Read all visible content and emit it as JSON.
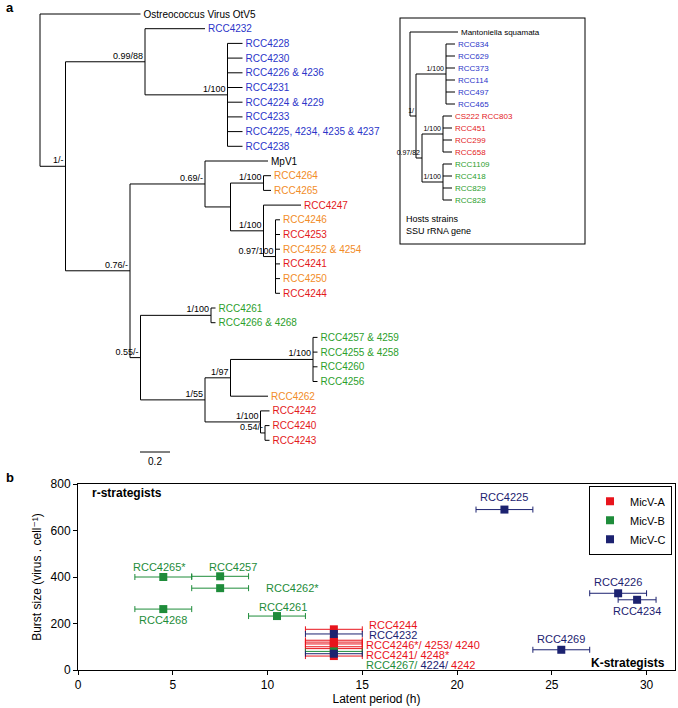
{
  "panel_labels": [
    "a",
    "b"
  ],
  "tree_panel": {
    "scale_bar": {
      "value": 0.2,
      "label": "0.2"
    },
    "tree": {
      "length": 0,
      "children": [
        {
          "name": "Ostreococcus Virus OtV5",
          "color": "#000000",
          "length": 0.67
        },
        {
          "support": "1/-",
          "length": 0.17,
          "children": [
            {
              "support": "0.99/88",
              "length": 0.53,
              "children": [
                {
                  "name": "RCC4232",
                  "color": "#2b35c9",
                  "length": 0.4
                },
                {
                  "support": "1/100",
                  "length": 0.55,
                  "children": [
                    {
                      "name": "RCC4228",
                      "color": "#2b35c9",
                      "length": 0.1
                    },
                    {
                      "name": "RCC4230",
                      "color": "#2b35c9",
                      "length": 0.1
                    },
                    {
                      "name": "RCC4226 & 4236",
                      "color": "#2b35c9",
                      "length": 0.1
                    },
                    {
                      "name": "RCC4231",
                      "color": "#2b35c9",
                      "length": 0.1
                    },
                    {
                      "name": "RCC4224 & 4229",
                      "color": "#2b35c9",
                      "length": 0.1
                    },
                    {
                      "name": "RCC4233",
                      "color": "#2b35c9",
                      "length": 0.1
                    },
                    {
                      "name": "RCC4225, 4234, 4235 & 4237",
                      "color": "#2b35c9",
                      "length": 0.1
                    },
                    {
                      "name": "RCC4238",
                      "color": "#2b35c9",
                      "length": 0.1
                    }
                  ]
                }
              ]
            },
            {
              "support": "0.76/-",
              "length": 0.43,
              "children": [
                {
                  "support": "0.69/-",
                  "length": 0.5,
                  "children": [
                    {
                      "name": "MpV1",
                      "color": "#000000",
                      "length": 0.42
                    },
                    {
                      "length": 0.17,
                      "children": [
                        {
                          "support": "1/100",
                          "length": 0.22,
                          "children": [
                            {
                              "name": "RCC4264",
                              "color": "#f28c28",
                              "length": 0.05
                            },
                            {
                              "name": "RCC4265",
                              "color": "#f28c28",
                              "length": 0.05
                            }
                          ]
                        },
                        {
                          "support": "1/100",
                          "length": 0.22,
                          "children": [
                            {
                              "name": "RCC4247",
                              "color": "#e31a1c",
                              "length": 0.25
                            },
                            {
                              "support": "0.97/100",
                              "length": 0.08,
                              "children": [
                                {
                                  "name": "RCC4246",
                                  "color": "#f28c28",
                                  "length": 0.03
                                },
                                {
                                  "name": "RCC4253",
                                  "color": "#e31a1c",
                                  "length": 0.03
                                },
                                {
                                  "name": "RCC4252 & 4254",
                                  "color": "#f28c28",
                                  "length": 0.03
                                },
                                {
                                  "name": "RCC4241",
                                  "color": "#e31a1c",
                                  "length": 0.03
                                },
                                {
                                  "name": "RCC4250",
                                  "color": "#f28c28",
                                  "length": 0.03
                                },
                                {
                                  "name": "RCC4244",
                                  "color": "#e31a1c",
                                  "length": 0.03
                                }
                              ]
                            }
                          ]
                        }
                      ]
                    }
                  ]
                },
                {
                  "support": "0.55/-",
                  "length": 0.07,
                  "children": [
                    {
                      "support": "1/100",
                      "length": 0.47,
                      "children": [
                        {
                          "name": "RCC4261",
                          "color": "#2ca02c",
                          "length": 0.03
                        },
                        {
                          "name": "RCC4266 & 4268",
                          "color": "#2ca02c",
                          "length": 0.03
                        }
                      ]
                    },
                    {
                      "support": "1/55",
                      "length": 0.43,
                      "children": [
                        {
                          "support": "1/97",
                          "length": 0.17,
                          "children": [
                            {
                              "support": "1/100",
                              "length": 0.55,
                              "children": [
                                {
                                  "name": "RCC4257 & 4259",
                                  "color": "#2ca02c",
                                  "length": 0.03
                                },
                                {
                                  "name": "RCC4255 & 4258",
                                  "color": "#2ca02c",
                                  "length": 0.03
                                },
                                {
                                  "name": "RCC4260",
                                  "color": "#2ca02c",
                                  "length": 0.03
                                },
                                {
                                  "name": "RCC4256",
                                  "color": "#2ca02c",
                                  "length": 0.03
                                }
                              ]
                            },
                            {
                              "name": "RCC4262",
                              "color": "#f28c28",
                              "length": 0.25
                            }
                          ]
                        },
                        {
                          "support": "1/100",
                          "length": 0.37,
                          "children": [
                            {
                              "name": "RCC4242",
                              "color": "#e31a1c",
                              "length": 0.06
                            },
                            {
                              "support": "0.54/-",
                              "length": 0.03,
                              "children": [
                                {
                                  "name": "RCC4240",
                                  "color": "#e31a1c",
                                  "length": 0.03
                                },
                                {
                                  "name": "RCC4243",
                                  "color": "#e31a1c",
                                  "length": 0.03
                                }
                              ]
                            }
                          ]
                        }
                      ]
                    }
                  ]
                }
              ]
            }
          ]
        }
      ]
    },
    "inset": {
      "caption": [
        "Hosts strains",
        "SSU rRNA gene"
      ],
      "tree": {
        "length": 0,
        "children": [
          {
            "name": "Mantoniella squamata",
            "color": "#000000",
            "length": 0.8
          },
          {
            "support": "1/",
            "length": 0.1,
            "children": [
              {
                "support": "1/100",
                "length": 0.5,
                "children": [
                  {
                    "name": "RCC834",
                    "color": "#2b35c9",
                    "length": 0.15
                  },
                  {
                    "name": "RCC629",
                    "color": "#2b35c9",
                    "length": 0.15
                  },
                  {
                    "name": "RCC373",
                    "color": "#2b35c9",
                    "length": 0.15
                  },
                  {
                    "name": "RCC114",
                    "color": "#2b35c9",
                    "length": 0.15
                  },
                  {
                    "name": "RCC497",
                    "color": "#2b35c9",
                    "length": 0.15
                  },
                  {
                    "name": "RCC465",
                    "color": "#2b35c9",
                    "length": 0.15
                  }
                ]
              },
              {
                "support": "0.97/82",
                "length": 0.1,
                "children": [
                  {
                    "support": "1/100",
                    "length": 0.35,
                    "children": [
                      {
                        "name": "CS222 RCC803",
                        "color": "#e31a1c",
                        "length": 0.15
                      },
                      {
                        "name": "RCC451",
                        "color": "#e31a1c",
                        "length": 0.15
                      },
                      {
                        "name": "RCC299",
                        "color": "#e31a1c",
                        "length": 0.15
                      },
                      {
                        "name": "RCC658",
                        "color": "#e31a1c",
                        "length": 0.15
                      }
                    ]
                  },
                  {
                    "support": "1/100",
                    "length": 0.35,
                    "children": [
                      {
                        "name": "RCC1109",
                        "color": "#2ca02c",
                        "length": 0.15
                      },
                      {
                        "name": "RCC418",
                        "color": "#2ca02c",
                        "length": 0.15
                      },
                      {
                        "name": "RCC829",
                        "color": "#2ca02c",
                        "length": 0.15
                      },
                      {
                        "name": "RCC828",
                        "color": "#2ca02c",
                        "length": 0.15
                      }
                    ]
                  }
                ]
              }
            ]
          }
        ]
      }
    }
  },
  "chart_data": {
    "type": "scatter",
    "xlabel": "Latent period (h)",
    "ylabel": "Burst size (virus . cell⁻¹)",
    "xlim": [
      0,
      31.5
    ],
    "xticks": [
      0,
      5,
      10,
      15,
      20,
      25,
      30
    ],
    "ylim": [
      0,
      800
    ],
    "yticks": [
      0,
      200,
      400,
      600,
      800
    ],
    "grid": false,
    "legend": "upper right",
    "marker": "square",
    "series": [
      {
        "name": "MicV-A",
        "color": "#e8141c",
        "x": [
          13.5,
          13.5,
          13.5,
          13.5,
          13.5,
          13.5,
          13.5
        ],
        "values": [
          175,
          128,
          120,
          112,
          100,
          92,
          60
        ],
        "x_error": [
          1.5,
          1.5,
          1.5,
          1.5,
          1.5,
          1.5,
          1.5
        ]
      },
      {
        "name": "MicV-B",
        "color": "#1e8c3a",
        "x": [
          4.5,
          7.5,
          7.5,
          4.5,
          10.5,
          13.5
        ],
        "values": [
          400,
          403,
          352,
          262,
          232,
          80
        ],
        "x_error": [
          1.5,
          1.5,
          1.5,
          1.5,
          1.5,
          1.5
        ]
      },
      {
        "name": "MicV-C",
        "color": "#1c2270",
        "x": [
          22.5,
          28.5,
          29.5,
          25.5,
          13.5,
          13.5
        ],
        "values": [
          690,
          330,
          302,
          87,
          155,
          70
        ],
        "x_error": [
          1.5,
          1.5,
          1.0,
          1.5,
          1.5,
          1.5
        ]
      }
    ],
    "annotations": [
      {
        "parts": [
          {
            "text": "r-strategists"
          }
        ],
        "x": 2.6,
        "y": 760
      },
      {
        "parts": [
          {
            "text": "K-strategists"
          }
        ],
        "x": 29,
        "y": 30
      },
      {
        "parts": [
          {
            "text": "RCC4225",
            "series": "MicV-C"
          }
        ],
        "x": 22.5,
        "y": 745
      },
      {
        "parts": [
          {
            "text": "RCC4265*",
            "series": "MicV-B"
          }
        ],
        "x": 4.3,
        "y": 445
      },
      {
        "parts": [
          {
            "text": "RCC4257",
            "series": "MicV-B"
          }
        ],
        "x": 8.2,
        "y": 445
      },
      {
        "parts": [
          {
            "text": "RCC4262*",
            "series": "MicV-B"
          }
        ],
        "x": 11.3,
        "y": 352
      },
      {
        "parts": [
          {
            "text": "RCC4268",
            "series": "MicV-B"
          }
        ],
        "x": 4.5,
        "y": 215
      },
      {
        "parts": [
          {
            "text": "RCC4261",
            "series": "MicV-B"
          }
        ],
        "x": 10.8,
        "y": 272
      },
      {
        "parts": [
          {
            "text": "RCC4226",
            "series": "MicV-C"
          }
        ],
        "x": 28.5,
        "y": 380
      },
      {
        "parts": [
          {
            "text": "RCC4234",
            "series": "MicV-C"
          }
        ],
        "x": 29.5,
        "y": 255
      },
      {
        "parts": [
          {
            "text": "RCC4269",
            "series": "MicV-C"
          }
        ],
        "x": 25.5,
        "y": 135
      },
      {
        "parts": [
          {
            "text": "RCC4244",
            "series": "MicV-A"
          }
        ],
        "x": 16.6,
        "y": 195
      },
      {
        "parts": [
          {
            "text": "RCC4232",
            "series": "MicV-C"
          }
        ],
        "x": 16.6,
        "y": 152
      },
      {
        "parts": [
          {
            "text": "RCC4246*/ 4253/ 4240",
            "series": "MicV-A"
          }
        ],
        "x": 18.2,
        "y": 109
      },
      {
        "parts": [
          {
            "text": "RCC4241/ 4248*",
            "series": "MicV-A"
          }
        ],
        "x": 17.4,
        "y": 66
      },
      {
        "parts": [
          {
            "text": "RCC4267/ ",
            "series": "MicV-B"
          },
          {
            "text": "4224/ ",
            "series": "MicV-C"
          },
          {
            "text": "4242",
            "series": "MicV-A"
          }
        ],
        "x": 18.1,
        "y": 23
      }
    ]
  }
}
